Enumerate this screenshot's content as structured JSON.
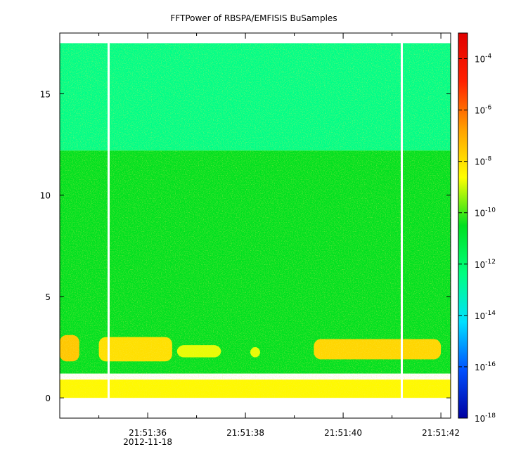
{
  "chart_data": {
    "type": "heatmap",
    "title": "FFTPower of RBSPA/EMFISIS  BuSamples",
    "xlabel": "",
    "ylabel": "",
    "x_range": [
      "2012-11-18T21:51:34.2",
      "2012-11-18T21:51:42.2"
    ],
    "y_range": [
      -1,
      18
    ],
    "x_ticks": [
      {
        "label": "21:51:36",
        "sublabel": "2012-11-18"
      },
      {
        "label": "21:51:38",
        "sublabel": ""
      },
      {
        "label": "21:51:40",
        "sublabel": ""
      },
      {
        "label": "21:51:42",
        "sublabel": ""
      }
    ],
    "x_minor_tick_times": [
      "21:51:35",
      "21:51:37",
      "21:51:39",
      "21:51:41"
    ],
    "y_ticks": [
      0,
      5,
      10,
      15
    ],
    "data_y_range": [
      0,
      17.5
    ],
    "colorbar": {
      "scale": "log",
      "range": [
        1e-18,
        0.001
      ],
      "tick_base": "10",
      "tick_exponents": [
        "-4",
        "-6",
        "-8",
        "-10",
        "-12",
        "-14",
        "-16",
        "-18"
      ],
      "colors": [
        "#0000a0",
        "#0050ff",
        "#00e0ff",
        "#00ff80",
        "#00e020",
        "#ffff00",
        "#ffa000",
        "#ff2000",
        "#e00000"
      ]
    },
    "data_gaps": [
      "21:51:35.2",
      "21:51:41.2"
    ],
    "bands": [
      {
        "t_start": "21:51:34.2",
        "t_end": "21:51:42.2",
        "f_min": 12.2,
        "f_max": 17.5,
        "power_exp": -12.5
      },
      {
        "t_start": "21:51:34.2",
        "t_end": "21:51:42.2",
        "f_min": 1.2,
        "f_max": 12.2,
        "power_exp": -10.5
      },
      {
        "t_start": "21:51:34.2",
        "t_end": "21:51:42.2",
        "f_min": 0,
        "f_max": 0.9,
        "power_exp": -8.5
      },
      {
        "t_start": "21:51:34.2",
        "t_end": "21:51:34.6",
        "f_min": 1.8,
        "f_max": 3.1,
        "power_exp": -7.5
      },
      {
        "t_start": "21:51:35.0",
        "t_end": "21:51:36.5",
        "f_min": 1.8,
        "f_max": 3.0,
        "power_exp": -8
      },
      {
        "t_start": "21:51:36.6",
        "t_end": "21:51:37.5",
        "f_min": 2.0,
        "f_max": 2.6,
        "power_exp": -8.8
      },
      {
        "t_start": "21:51:38.1",
        "t_end": "21:51:38.3",
        "f_min": 2.0,
        "f_max": 2.5,
        "power_exp": -8.8
      },
      {
        "t_start": "21:51:39.4",
        "t_end": "21:51:42.0",
        "f_min": 1.9,
        "f_max": 2.9,
        "power_exp": -7.8
      }
    ]
  }
}
